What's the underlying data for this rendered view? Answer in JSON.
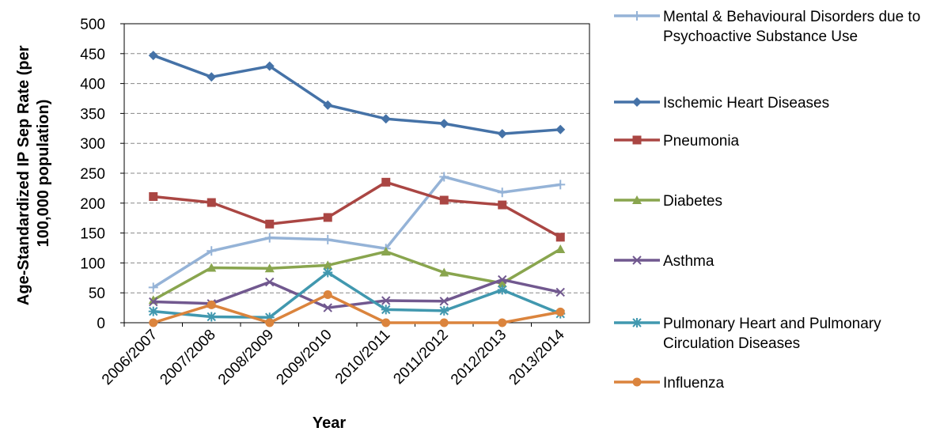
{
  "chart_data": {
    "type": "line",
    "x_label": "Year",
    "y_label": "Age-Standardized IP Sep Rate (per 100,000 population)",
    "categories": [
      "2006/2007",
      "2007/2008",
      "2008/2009",
      "2009/2010",
      "2010/2011",
      "2011/2012",
      "2012/2013",
      "2013/2014"
    ],
    "ylim": [
      0,
      500
    ],
    "yticks": [
      0,
      50,
      100,
      150,
      200,
      250,
      300,
      350,
      400,
      450,
      500
    ],
    "grid": true,
    "legend": "right",
    "series": [
      {
        "name": "Mental & Behavioural Disorders due to Psychoactive Substance Use",
        "color": "#95b3d7",
        "marker": "plus",
        "values": [
          59,
          120,
          142,
          139,
          124,
          244,
          218,
          231
        ]
      },
      {
        "name": "Ischemic Heart Diseases",
        "color": "#4572a7",
        "marker": "diamond",
        "values": [
          447,
          411,
          429,
          364,
          341,
          333,
          316,
          323
        ]
      },
      {
        "name": "Pneumonia",
        "color": "#aa4643",
        "marker": "square",
        "values": [
          211,
          201,
          165,
          176,
          235,
          205,
          197,
          143
        ]
      },
      {
        "name": "Diabetes",
        "color": "#89a54e",
        "marker": "triangle",
        "values": [
          38,
          92,
          91,
          96,
          119,
          84,
          66,
          123
        ]
      },
      {
        "name": "Asthma",
        "color": "#71588f",
        "marker": "x",
        "values": [
          35,
          32,
          68,
          25,
          37,
          36,
          72,
          51
        ]
      },
      {
        "name": "Pulmonary Heart and Pulmonary Circulation Diseases",
        "color": "#4198af",
        "marker": "asterisk",
        "values": [
          19,
          10,
          9,
          84,
          22,
          20,
          55,
          15
        ]
      },
      {
        "name": "Influenza",
        "color": "#db843d",
        "marker": "circle",
        "values": [
          0,
          30,
          0,
          47,
          0,
          0,
          0,
          18
        ]
      }
    ]
  }
}
